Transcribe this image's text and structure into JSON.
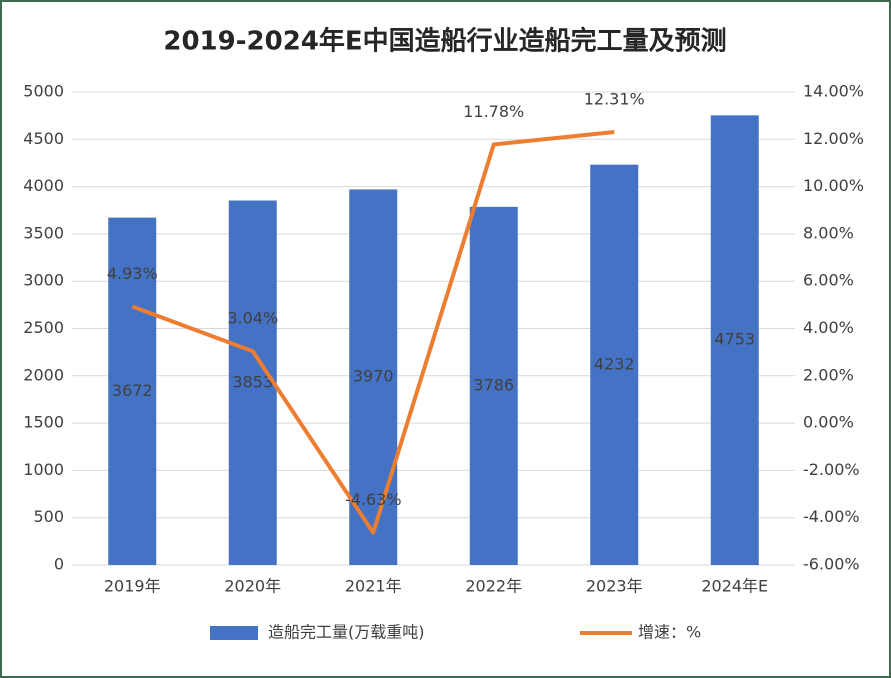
{
  "chart_data": {
    "type": "bar",
    "title": "2019-2024年E中国造船行业造船完工量及预测",
    "categories": [
      "2019年",
      "2020年",
      "2021年",
      "2022年",
      "2023年",
      "2024年E"
    ],
    "series": [
      {
        "name": "造船完工量(万载重吨)",
        "type": "bar",
        "color": "#4472c4",
        "values": [
          3672,
          3853,
          3970,
          3786,
          4232,
          4753
        ]
      },
      {
        "name": "增速：%",
        "type": "line",
        "axis": "y2",
        "color": "#ed7d31",
        "values": [
          4.93,
          3.04,
          -4.63,
          11.78,
          12.31,
          null
        ],
        "value_labels": [
          "4.93%",
          "3.04%",
          "-4.63%",
          "11.78%",
          "12.31%",
          null
        ]
      }
    ],
    "ylim": [
      0,
      5000
    ],
    "yticks": [
      0,
      500,
      1000,
      1500,
      2000,
      2500,
      3000,
      3500,
      4000,
      4500,
      5000
    ],
    "y2lim": [
      -6,
      14
    ],
    "y2ticks": [
      {
        "value": -6,
        "label": "-6.00%"
      },
      {
        "value": -4,
        "label": "-4.00%"
      },
      {
        "value": -2,
        "label": "-2.00%"
      },
      {
        "value": 0,
        "label": "0.00%"
      },
      {
        "value": 2,
        "label": "2.00%"
      },
      {
        "value": 4,
        "label": "4.00%"
      },
      {
        "value": 6,
        "label": "6.00%"
      },
      {
        "value": 8,
        "label": "8.00%"
      },
      {
        "value": 10,
        "label": "10.00%"
      },
      {
        "value": 12,
        "label": "12.00%"
      },
      {
        "value": 14,
        "label": "14.00%"
      }
    ],
    "grid": true,
    "legend": "bottom"
  }
}
